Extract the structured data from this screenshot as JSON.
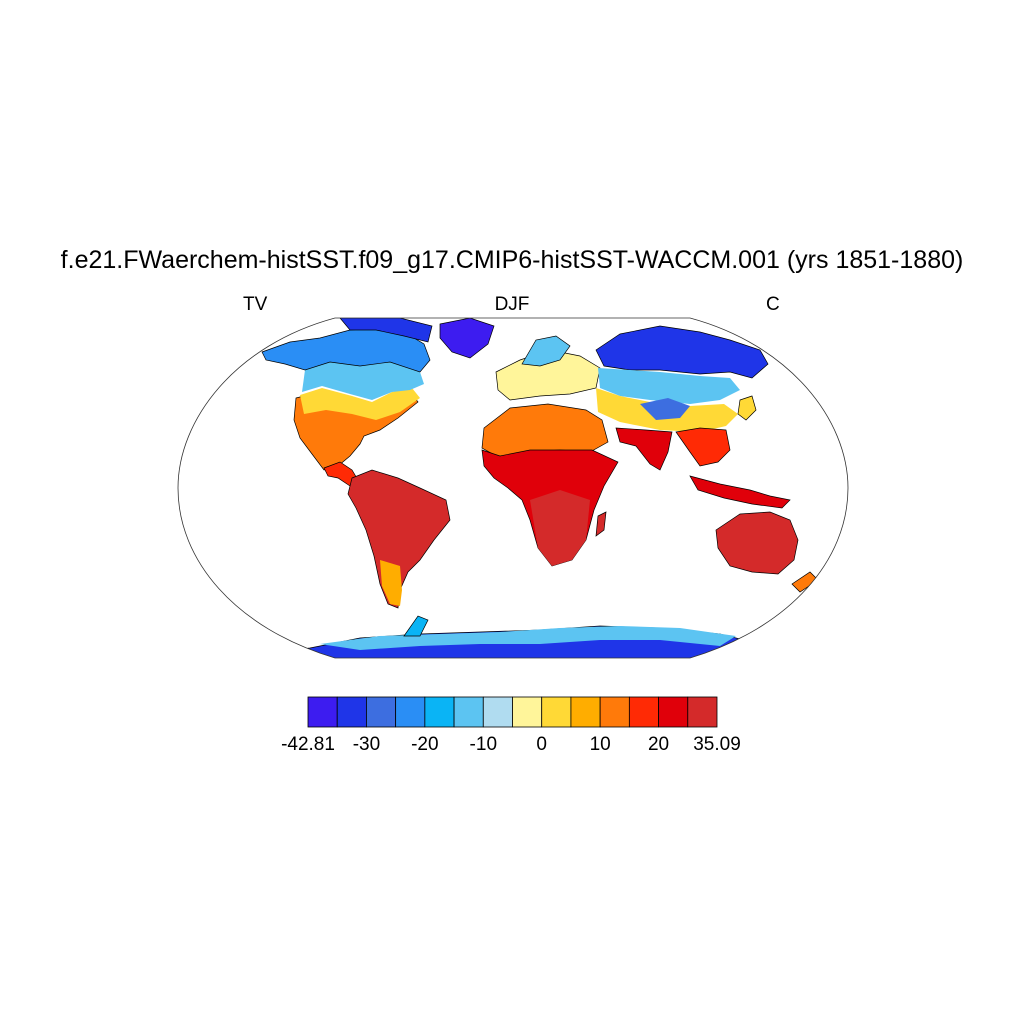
{
  "title": "f.e21.FWaerchem-histSST.f09_g17.CMIP6-histSST-WACCM.001 (yrs 1851-1880)",
  "subtitles": {
    "left": "TV",
    "center": "DJF",
    "right": "C"
  },
  "colorbar": {
    "colors": [
      "#3d1cf0",
      "#1f35e8",
      "#3d6ee0",
      "#2a8ef5",
      "#0ab4f5",
      "#5cc4f2",
      "#b0dcf0",
      "#fff59a",
      "#ffd936",
      "#ffad00",
      "#ff7a0a",
      "#ff2a05",
      "#e0000a",
      "#d42a2a"
    ],
    "labels": [
      "-42.81",
      "-30",
      "-20",
      "-10",
      "0",
      "10",
      "20",
      "35.09"
    ],
    "min": -42.81,
    "max": 35.09
  }
}
